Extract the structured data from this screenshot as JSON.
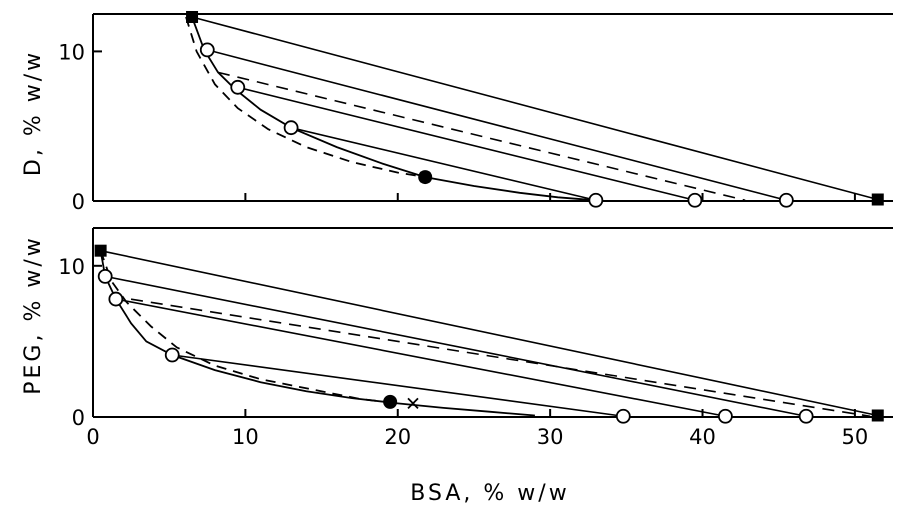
{
  "chart_data": [
    {
      "type": "scatter",
      "panel": "top",
      "xlabel": "",
      "ylabel": "D, % w/w",
      "xlim": [
        0,
        52.5
      ],
      "ylim": [
        0,
        12.5
      ],
      "yticks": [
        0,
        10
      ],
      "binodal_solid": [
        [
          6.5,
          12.3
        ],
        [
          7.3,
          10.1
        ],
        [
          8.2,
          8.6
        ],
        [
          9.3,
          7.5
        ],
        [
          11,
          6.1
        ],
        [
          13,
          4.9
        ],
        [
          16,
          3.6
        ],
        [
          19,
          2.5
        ],
        [
          21.8,
          1.6
        ],
        [
          25,
          1
        ],
        [
          28,
          0.55
        ],
        [
          30.5,
          0.25
        ],
        [
          33,
          0.05
        ]
      ],
      "binodal_dashed": [
        [
          6.1,
          12.3
        ],
        [
          6.8,
          10
        ],
        [
          8,
          7.8
        ],
        [
          9.5,
          6.2
        ],
        [
          11.5,
          4.8
        ],
        [
          14,
          3.6
        ],
        [
          17,
          2.6
        ],
        [
          20,
          1.9
        ],
        [
          21.8,
          1.6
        ]
      ],
      "tie_lines_solid": [
        [
          [
            6.5,
            12.3
          ],
          [
            51.5,
            0.1
          ]
        ],
        [
          [
            7.5,
            10.1
          ],
          [
            45.5,
            0.05
          ]
        ],
        [
          [
            9.5,
            7.6
          ],
          [
            39.5,
            0.05
          ]
        ],
        [
          [
            13,
            4.9
          ],
          [
            33,
            0.05
          ]
        ]
      ],
      "tie_lines_dashed": [
        [
          [
            8.2,
            8.6
          ],
          [
            42.8,
            0.05
          ]
        ]
      ],
      "open_points": [
        [
          7.5,
          10.1
        ],
        [
          9.5,
          7.6
        ],
        [
          13,
          4.9
        ],
        [
          33,
          0.05
        ],
        [
          39.5,
          0.05
        ],
        [
          45.5,
          0.05
        ]
      ],
      "filled_points": [
        [
          21.8,
          1.6
        ]
      ],
      "square_points": [
        [
          6.5,
          12.3
        ],
        [
          51.5,
          0.1
        ]
      ],
      "cross_points": [
        [
          21.8,
          1.6
        ]
      ]
    },
    {
      "type": "scatter",
      "panel": "bottom",
      "xlabel": "BSA, % w/w",
      "ylabel": "PEG, % w/w",
      "xlim": [
        0,
        52.5
      ],
      "ylim": [
        0,
        12.5
      ],
      "xticks": [
        0,
        10,
        20,
        30,
        40,
        50
      ],
      "yticks": [
        0,
        10
      ],
      "binodal_solid": [
        [
          0.5,
          11
        ],
        [
          0.8,
          9.3
        ],
        [
          1.5,
          7.8
        ],
        [
          2.5,
          6.2
        ],
        [
          3.5,
          5
        ],
        [
          5.2,
          4.1
        ],
        [
          8,
          3.1
        ],
        [
          11,
          2.3
        ],
        [
          14,
          1.7
        ],
        [
          17,
          1.25
        ],
        [
          20,
          0.9
        ],
        [
          23,
          0.6
        ],
        [
          26,
          0.35
        ],
        [
          29,
          0.1
        ]
      ],
      "binodal_dashed": [
        [
          0.5,
          11
        ],
        [
          1.2,
          9
        ],
        [
          2.2,
          7.6
        ],
        [
          3.8,
          6
        ],
        [
          5.5,
          4.6
        ],
        [
          8,
          3.4
        ],
        [
          11,
          2.5
        ],
        [
          14.5,
          1.8
        ],
        [
          17.5,
          1.2
        ],
        [
          20,
          0.9
        ]
      ],
      "tie_lines_solid": [
        [
          [
            0.5,
            11
          ],
          [
            51.5,
            0.1
          ]
        ],
        [
          [
            0.8,
            9.3
          ],
          [
            46.8,
            0.05
          ]
        ],
        [
          [
            1.5,
            7.8
          ],
          [
            41.5,
            0.05
          ]
        ],
        [
          [
            5.2,
            4.1
          ],
          [
            34.8,
            0.05
          ]
        ]
      ],
      "tie_lines_dashed": [
        [
          [
            1.2,
            8
          ],
          [
            51,
            0.05
          ]
        ]
      ],
      "open_points": [
        [
          0.8,
          9.3
        ],
        [
          1.5,
          7.8
        ],
        [
          5.2,
          4.1
        ],
        [
          34.8,
          0.05
        ],
        [
          41.5,
          0.05
        ],
        [
          46.8,
          0.05
        ]
      ],
      "filled_points": [
        [
          19.5,
          1
        ]
      ],
      "square_points": [
        [
          0.5,
          11
        ],
        [
          51.5,
          0.1
        ]
      ],
      "cross_points": [
        [
          21,
          0.9
        ]
      ]
    }
  ],
  "labels": {
    "top_ylabel": "D, % w/w",
    "bottom_ylabel": "PEG, % w/w",
    "xlabel": "BSA, % w/w"
  }
}
